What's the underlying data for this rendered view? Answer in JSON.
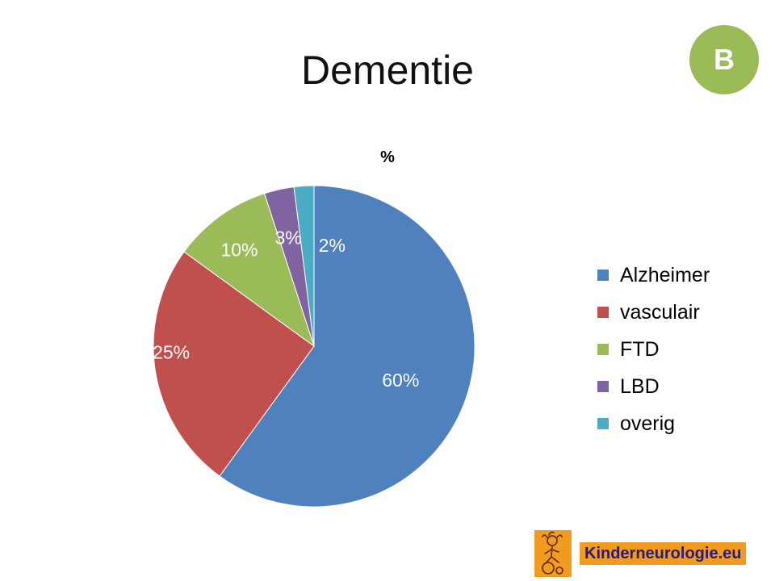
{
  "slide": {
    "title": "Dementie",
    "badge": "B"
  },
  "chart_data": {
    "type": "pie",
    "title": "%",
    "categories": [
      "Alzheimer",
      "vasculair",
      "FTD",
      "LBD",
      "overig"
    ],
    "values": [
      60,
      25,
      10,
      3,
      2
    ],
    "data_labels": [
      "60%",
      "25%",
      "10%",
      "3%",
      "2%"
    ],
    "colors": [
      "#4f81bd",
      "#c0504d",
      "#9bbb59",
      "#8064a2",
      "#4bacc6"
    ],
    "legend": "right",
    "start": "top, clockwise"
  },
  "logo": {
    "text": "Kinderneurologie.eu",
    "color": "#f29b21"
  }
}
